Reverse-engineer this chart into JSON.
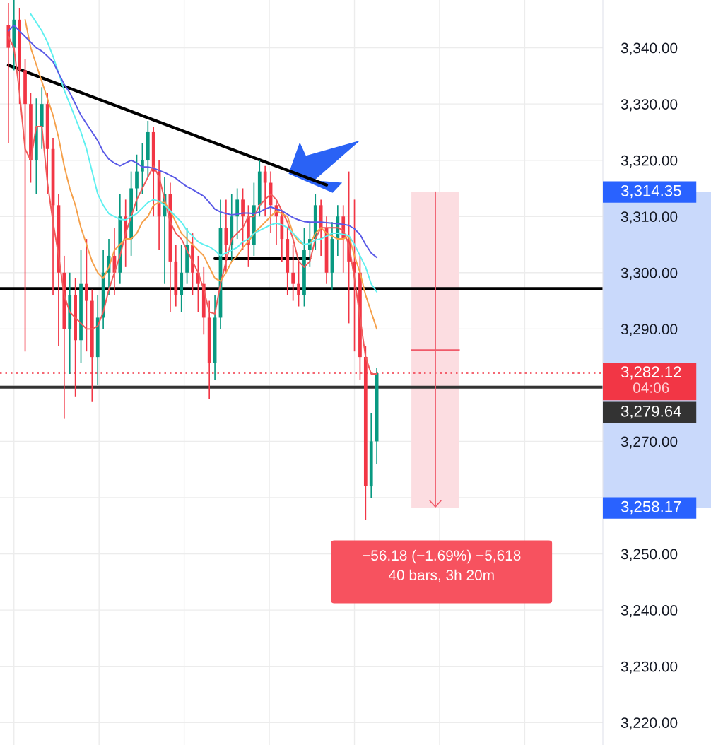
{
  "chart_data": {
    "type": "candlestick",
    "categories": [
      null,
      null,
      null,
      null,
      null,
      null,
      null,
      null,
      null,
      null,
      null,
      null,
      null,
      null,
      null,
      null,
      null,
      null,
      null,
      null,
      null,
      null,
      null,
      null,
      null,
      null,
      null,
      null,
      null,
      null,
      null,
      null,
      null,
      null,
      null,
      null,
      null,
      null,
      null,
      null,
      null,
      null,
      null,
      null,
      null,
      null,
      null,
      null,
      null,
      null,
      null,
      null,
      null,
      null,
      null,
      null,
      null,
      null,
      null,
      null,
      null,
      null,
      null,
      null,
      null,
      null,
      null,
      null,
      null,
      null,
      null,
      null,
      null,
      null,
      null,
      null,
      null,
      null,
      null,
      null,
      null,
      null,
      null,
      null,
      null,
      null,
      null,
      null,
      null,
      null,
      null,
      null,
      null,
      null,
      null,
      null,
      null,
      null,
      null,
      null,
      null,
      null,
      null,
      null,
      null,
      null,
      null
    ],
    "colors": [
      "#f23645",
      "#089981",
      "#f23645",
      "#f23645",
      "#f23645",
      "#089981",
      "#089981",
      "#f23645",
      "#f23645",
      "#f23645",
      "#f23645",
      "#089981",
      "#f23645",
      "#089981",
      "#f23645",
      "#f23645",
      "#089981",
      "#089981",
      "#089981",
      "#f23645",
      "#089981",
      "#f23645",
      "#089981",
      "#089981",
      "#089981",
      "#089981",
      "#f23645",
      "#f23645",
      "#089981",
      "#f23645",
      "#f23645",
      "#089981",
      "#089981",
      "#f23645",
      "#f23645",
      "#f23645",
      "#f23645",
      "#089981",
      "#089981",
      "#f23645",
      "#089981",
      "#089981",
      "#f23645",
      "#f23645",
      "#089981",
      "#089981",
      "#f23645",
      "#f23645",
      "#f23645",
      "#f23645",
      "#f23645",
      "#f23645",
      "#f23645",
      "#089981",
      "#089981",
      "#089981",
      "#f23645",
      "#f23645",
      "#089981",
      "#089981",
      "#f23645",
      "#f23645",
      "#f23645",
      "#f23645",
      "#f23645",
      "#089981",
      "#089981",
      null,
      null,
      null,
      null,
      null,
      null,
      null,
      null,
      null,
      null,
      null,
      null,
      null,
      null,
      null,
      null,
      null,
      null,
      null,
      null,
      null,
      null,
      null,
      null,
      null,
      null,
      null,
      null,
      null,
      null,
      null,
      null,
      null,
      null,
      null,
      null,
      null,
      null,
      null,
      null
    ],
    "ohlc": [
      [
        3344,
        3348,
        3323,
        3340
      ],
      [
        3340,
        3348.5,
        3336,
        3345
      ],
      [
        3345,
        3347,
        3330,
        3336
      ],
      [
        3336,
        3338,
        3286,
        3330
      ],
      [
        3330,
        3332,
        3316,
        3320
      ],
      [
        3320,
        3331,
        3314,
        3326
      ],
      [
        3326,
        3333,
        3322,
        3330
      ],
      [
        3330,
        3332,
        3314,
        3322
      ],
      [
        3322,
        3324,
        3296,
        3312
      ],
      [
        3312,
        3314,
        3287,
        3300
      ],
      [
        3300,
        3303,
        3274,
        3290
      ],
      [
        3290,
        3300,
        3282,
        3296
      ],
      [
        3296,
        3299,
        3278,
        3288
      ],
      [
        3288,
        3304,
        3284,
        3298
      ],
      [
        3298,
        3306,
        3286,
        3295
      ],
      [
        3295,
        3297,
        3277,
        3285
      ],
      [
        3285,
        3296,
        3280,
        3292
      ],
      [
        3292,
        3304,
        3290,
        3300
      ],
      [
        3300,
        3306,
        3296,
        3303
      ],
      [
        3303,
        3308,
        3296,
        3300
      ],
      [
        3300,
        3314,
        3298,
        3310
      ],
      [
        3310,
        3313,
        3301,
        3306
      ],
      [
        3306,
        3318,
        3303,
        3315
      ],
      [
        3315,
        3321,
        3311,
        3318
      ],
      [
        3318,
        3323,
        3314,
        3320
      ],
      [
        3320,
        3327,
        3317,
        3325
      ],
      [
        3325,
        3326,
        3310,
        3318
      ],
      [
        3318,
        3320,
        3304,
        3310
      ],
      [
        3310,
        3317,
        3298,
        3314
      ],
      [
        3314,
        3316,
        3293,
        3302
      ],
      [
        3302,
        3305,
        3294,
        3296
      ],
      [
        3296,
        3305,
        3293,
        3300
      ],
      [
        3300,
        3308,
        3298,
        3305
      ],
      [
        3305,
        3307,
        3296,
        3300
      ],
      [
        3300,
        3303,
        3293,
        3298
      ],
      [
        3298,
        3301,
        3289,
        3292
      ],
      [
        3292,
        3295,
        3277.5,
        3284
      ],
      [
        3284,
        3296,
        3281,
        3292
      ],
      [
        3292,
        3313,
        3290,
        3308
      ],
      [
        3308,
        3313,
        3300,
        3305
      ],
      [
        3305,
        3314,
        3302,
        3310
      ],
      [
        3310,
        3315,
        3306,
        3313
      ],
      [
        3313,
        3315,
        3304,
        3310
      ],
      [
        3310,
        3312,
        3301,
        3305
      ],
      [
        3305,
        3316,
        3303,
        3312
      ],
      [
        3312,
        3320,
        3310,
        3318
      ],
      [
        3318,
        3319,
        3310,
        3316
      ],
      [
        3316,
        3318,
        3307,
        3312
      ],
      [
        3312,
        3313,
        3305,
        3310
      ],
      [
        3310,
        3311,
        3302,
        3306
      ],
      [
        3306,
        3308,
        3296,
        3300
      ],
      [
        3300,
        3305,
        3295,
        3298
      ],
      [
        3298,
        3302,
        3294,
        3296
      ],
      [
        3296,
        3308,
        3294,
        3304
      ],
      [
        3304,
        3309,
        3301,
        3306
      ],
      [
        3306,
        3314,
        3304,
        3312
      ],
      [
        3312,
        3313,
        3303,
        3308
      ],
      [
        3308,
        3310,
        3298,
        3300
      ],
      [
        3300,
        3309,
        3297,
        3306
      ],
      [
        3306,
        3312,
        3303,
        3310
      ],
      [
        3310,
        3312,
        3300,
        3306
      ],
      [
        3306,
        3318,
        3291,
        3302
      ],
      [
        3302,
        3313,
        3286,
        3300
      ],
      [
        3300,
        3303,
        3281,
        3285
      ],
      [
        3285,
        3287,
        3256,
        3262
      ],
      [
        3262,
        3275,
        3260,
        3270
      ],
      [
        3270,
        3283,
        3266,
        3282.12
      ],
      null,
      null,
      null,
      null,
      null,
      null,
      null,
      null,
      null,
      null,
      null,
      null,
      null,
      null,
      null,
      null,
      null,
      null,
      null,
      null,
      null,
      null,
      null,
      null,
      null,
      null,
      null,
      null,
      null,
      null,
      null,
      null,
      null,
      null,
      null,
      null,
      null,
      null,
      null,
      null
    ],
    "series": [
      {
        "type": "line",
        "color": "#f05a5a",
        "values": [
          3342,
          3340,
          3332,
          3322,
          3320,
          3326,
          3326,
          3316,
          3309,
          3303,
          3296,
          3293,
          3292,
          3291,
          3290,
          3290,
          3290.5,
          3293,
          3297,
          3300,
          3303,
          3307,
          3310,
          3313,
          3315,
          3317,
          3319,
          3317,
          3313,
          3309,
          3307,
          3306,
          3304,
          3302,
          3300,
          3297,
          3293,
          3292.7,
          3298,
          3302,
          3306,
          3307,
          3308,
          3310,
          3310,
          3312,
          3313,
          3314,
          3313,
          3311,
          3309,
          3306,
          3302,
          3301,
          3302,
          3306,
          3308,
          3308,
          3308,
          3308,
          3307.5,
          3305,
          3299,
          3292,
          3285,
          3282,
          3282,
          null,
          null,
          null,
          null,
          null,
          null,
          null,
          null,
          null,
          null,
          null,
          null,
          null,
          null,
          null,
          null,
          null,
          null,
          null,
          null,
          null,
          null,
          null,
          null,
          null,
          null,
          null,
          null,
          null,
          null,
          null,
          null,
          null,
          null,
          null,
          null,
          null,
          null,
          null,
          null
        ]
      },
      {
        "type": "line",
        "color": "#f5a04a",
        "values": [
          null,
          null,
          null,
          3345,
          3340,
          3337,
          3334,
          3331,
          3328,
          3324,
          3319,
          3315,
          3312,
          3308,
          3305,
          3302,
          3300,
          3299,
          3301,
          3304,
          3305,
          3306,
          3306,
          3307,
          3309,
          3310,
          3312,
          3312.5,
          3312.5,
          3311,
          3309,
          3307,
          3306,
          3305,
          3304,
          3303,
          3301,
          3299,
          3298.5,
          3300,
          3302,
          3303,
          3304.5,
          3305.5,
          3307,
          3308,
          3309,
          3310,
          3311,
          3310.5,
          3310,
          3307,
          3305.5,
          3305,
          3305,
          3307,
          3308,
          3307,
          3306.5,
          3306,
          3306,
          3306.5,
          3303,
          3300,
          3296,
          3293,
          3290,
          null,
          null,
          null,
          null,
          null,
          null,
          null,
          null,
          null,
          null,
          null,
          null,
          null,
          null,
          null,
          null,
          null,
          null,
          null,
          null,
          null,
          null,
          null,
          null,
          null,
          null,
          null,
          null,
          null,
          null,
          null,
          null,
          null,
          null,
          null,
          null,
          null,
          null,
          null,
          null
        ]
      },
      {
        "type": "line",
        "color": "#5ff0f0",
        "values": [
          null,
          null,
          null,
          null,
          3346,
          3344.5,
          3343,
          3341,
          3338.5,
          3335.5,
          3332.5,
          3330,
          3327.5,
          3325,
          3322,
          3318,
          3314,
          3312,
          3310.5,
          3310,
          3309.5,
          3309.4,
          3310,
          3310.5,
          3311.5,
          3312.5,
          3313,
          3312.7,
          3312,
          3311,
          3310,
          3309,
          3307.5,
          3306.5,
          3305.5,
          3305,
          3304.6,
          3304,
          3303,
          3303.5,
          3304,
          3304.5,
          3305.5,
          3306,
          3307,
          3307.5,
          3308,
          3308.5,
          3308.8,
          3308.5,
          3308,
          3307,
          3306,
          3305,
          3305.2,
          3305.8,
          3306,
          3306.5,
          3307,
          3307,
          3306.8,
          3306.6,
          3305,
          3303,
          3301,
          3298,
          3296.6,
          null,
          null,
          null,
          null,
          null,
          null,
          null,
          null,
          null,
          null,
          null,
          null,
          null,
          null,
          null,
          null,
          null,
          null,
          null,
          null,
          null,
          null,
          null,
          null,
          null,
          null,
          null,
          null,
          null,
          null,
          null,
          null,
          null,
          null,
          null,
          null,
          null,
          null,
          null,
          null
        ]
      },
      {
        "type": "line",
        "color": "#5a5ae6",
        "values": [
          3343,
          3344,
          3343,
          3342,
          3341,
          3340,
          3339.4,
          3338.5,
          3337.5,
          3335.5,
          3333.5,
          3332,
          3330,
          3328,
          3326.5,
          3325,
          3323.5,
          3321.5,
          3320.2,
          3319.5,
          3319,
          3319.5,
          3320,
          3319.5,
          3318.8,
          3318.8,
          3318.6,
          3318.2,
          3317.8,
          3317.3,
          3316.8,
          3316,
          3315.3,
          3314.8,
          3314.2,
          3313.6,
          3312.5,
          3311.3,
          3310.8,
          3310.5,
          3310.3,
          3310.4,
          3310.6,
          3310.6,
          3310.5,
          3310.8,
          3311.3,
          3311.7,
          3311.3,
          3311,
          3310.4,
          3309.8,
          3309.4,
          3309.1,
          3309,
          3309,
          3309,
          3308.9,
          3308.8,
          3308.7,
          3308.6,
          3308.4,
          3307.8,
          3306.8,
          3305,
          3303.5,
          3302.7,
          null,
          null,
          null,
          null,
          null,
          null,
          null,
          null,
          null,
          null,
          null,
          null,
          null,
          null,
          null,
          null,
          null,
          null,
          null,
          null,
          null,
          null,
          null,
          null,
          null,
          null,
          null,
          null,
          null,
          null,
          null,
          null,
          null,
          null,
          null,
          null,
          null,
          null,
          null,
          null
        ]
      },
      {
        "type": "line",
        "color": "#000000",
        "values": [
          3336.9,
          null,
          null,
          null,
          null,
          null,
          null,
          null,
          null,
          null,
          null,
          null,
          null,
          null,
          null,
          null,
          null,
          null,
          null,
          null,
          null,
          null,
          null,
          null,
          null,
          null,
          null,
          null,
          null,
          null,
          null,
          null,
          null,
          null,
          null,
          null,
          null,
          null,
          null,
          null,
          null,
          null,
          null,
          null,
          null,
          null,
          null,
          null,
          null,
          null,
          null,
          null,
          null,
          null,
          null,
          null,
          null,
          3315.6,
          null,
          null,
          null,
          null,
          null,
          null,
          null,
          null,
          null,
          null,
          null,
          null,
          null,
          null,
          null,
          null,
          null,
          null,
          null,
          null,
          null,
          null,
          null,
          null,
          null,
          null,
          null,
          null,
          null,
          null,
          null,
          null,
          null,
          null,
          null,
          null,
          null,
          null,
          null,
          null,
          null,
          null,
          null,
          null,
          null,
          null,
          null,
          null,
          null
        ]
      },
      {
        "type": "line",
        "color": "#000000",
        "values": [
          null,
          null,
          null,
          null,
          null,
          null,
          null,
          null,
          null,
          null,
          null,
          null,
          null,
          null,
          null,
          null,
          null,
          null,
          null,
          null,
          null,
          null,
          null,
          null,
          null,
          null,
          null,
          null,
          null,
          null,
          null,
          null,
          null,
          null,
          null,
          null,
          null,
          3302.5,
          null,
          null,
          null,
          null,
          null,
          null,
          null,
          null,
          null,
          null,
          null,
          null,
          null,
          null,
          null,
          null,
          3302.5,
          null,
          null,
          null,
          null,
          null,
          null,
          null,
          null,
          null,
          null,
          null,
          null,
          null,
          null,
          null,
          null,
          null,
          null,
          null,
          null,
          null,
          null,
          null,
          null,
          null,
          null,
          null,
          null,
          null,
          null,
          null,
          null,
          null,
          null,
          null,
          null,
          null,
          null,
          null,
          null,
          null,
          null,
          null,
          null,
          null,
          null,
          null,
          null,
          null,
          null,
          null,
          null
        ]
      }
    ],
    "ylim": [
      3216,
      3348.5
    ],
    "yticks": [
      {
        "value": 3220,
        "label": "3,220.00"
      },
      {
        "value": 3230,
        "label": "3,230.00"
      },
      {
        "value": 3240,
        "label": "3,240.00"
      },
      {
        "value": 3250,
        "label": "3,250.00"
      },
      {
        "value": 3260,
        "label": null
      },
      {
        "value": 3270,
        "label": "3,270.00"
      },
      {
        "value": 3280,
        "label": null
      },
      {
        "value": 3290,
        "label": "3,290.00"
      },
      {
        "value": 3300,
        "label": "3,300.00"
      },
      {
        "value": 3310,
        "label": "3,310.00"
      },
      {
        "value": 3320,
        "label": "3,320.00"
      },
      {
        "value": 3330,
        "label": "3,330.00"
      },
      {
        "value": 3340,
        "label": "3,340.00"
      }
    ],
    "grid": true,
    "tick_labels": "y",
    "ref_lines": [
      {
        "axis": "y",
        "value": 3297.2,
        "color": "#000000",
        "line_style": "solid"
      },
      {
        "axis": "y",
        "value": 3282.12,
        "label": "3,282.12\n04:06",
        "color": "#f23645",
        "line_style": "dotted"
      },
      {
        "axis": "y",
        "value": 3279.64,
        "label": "3,279.64",
        "color": "#333333",
        "line_style": "solid"
      }
    ],
    "bands": [
      {
        "axis": "y",
        "from": 3258.17,
        "to": 3314.35,
        "color": "#fcdde1"
      }
    ],
    "annotations": [
      "3,314.35",
      "3,258.17",
      "−56.18 (−1.69%) −5,618",
      "40 bars, 3h 20m"
    ]
  }
}
